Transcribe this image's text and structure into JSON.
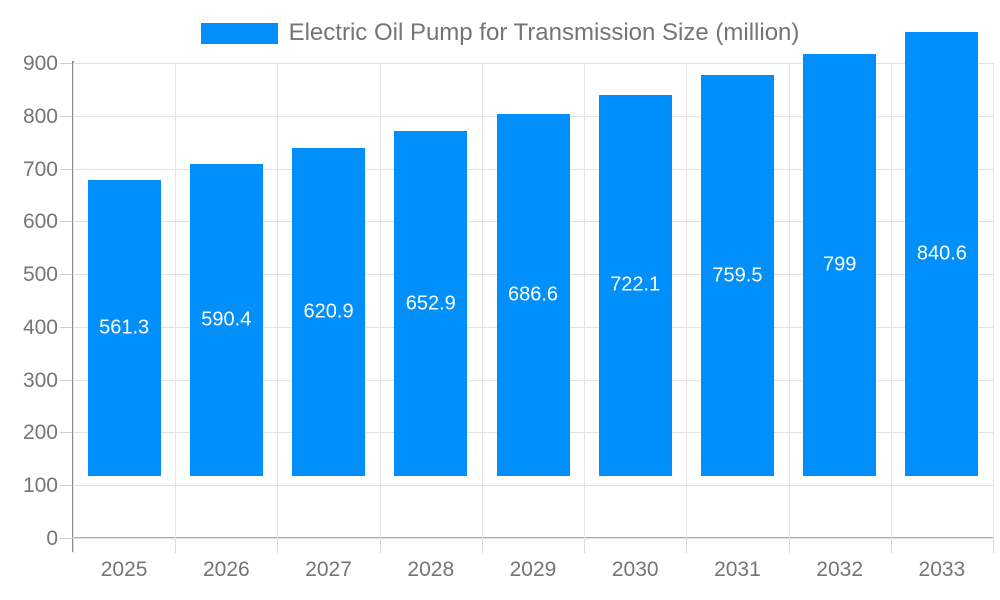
{
  "chart_data": {
    "type": "bar",
    "title": "Electric Oil Pump for Transmission Size (million)",
    "legend_position": "top",
    "categories": [
      "2025",
      "2026",
      "2027",
      "2028",
      "2029",
      "2030",
      "2031",
      "2032",
      "2033"
    ],
    "series": [
      {
        "name": "Electric Oil Pump for Transmission Size (million)",
        "values": [
          561.3,
          590.4,
          620.9,
          652.9,
          686.6,
          722.1,
          759.5,
          799,
          840.6
        ]
      }
    ],
    "xlabel": "",
    "ylabel": "",
    "ylim": [
      0,
      900
    ],
    "yticks": [
      0,
      100,
      200,
      300,
      400,
      500,
      600,
      700,
      800,
      900
    ],
    "grid": true,
    "bar_color": "#008FFB",
    "value_label_color": "#FFFFFF",
    "axis_label_color": "#757575",
    "title_color": "#757575"
  }
}
